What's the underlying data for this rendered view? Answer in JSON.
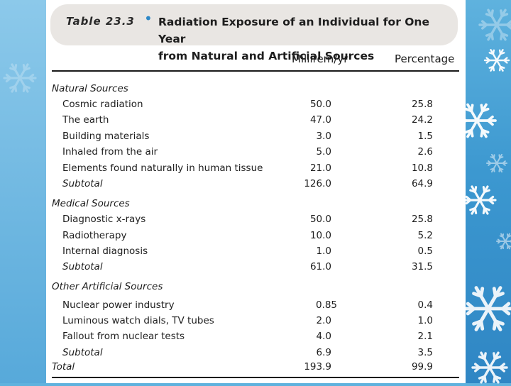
{
  "table": {
    "label": "Table 23.3",
    "title_line1": "Radiation Exposure of an Individual for One Year",
    "title_line2": "from Natural and Artificial Sources",
    "columns": {
      "millirem": "Millirem/yr",
      "percentage": "Percentage"
    },
    "rows": [
      {
        "kind": "section",
        "label": "Natural Sources",
        "millirem": "",
        "percentage": ""
      },
      {
        "kind": "item",
        "label": "Cosmic radiation",
        "millirem": "50.0",
        "percentage": "25.8"
      },
      {
        "kind": "item",
        "label": "The earth",
        "millirem": "47.0",
        "percentage": "24.2"
      },
      {
        "kind": "item",
        "label": "Building materials",
        "millirem": "3.0",
        "percentage": "1.5"
      },
      {
        "kind": "item",
        "label": "Inhaled from the air",
        "millirem": "5.0",
        "percentage": "2.6"
      },
      {
        "kind": "item",
        "label": "Elements found naturally in human tissue",
        "millirem": "21.0",
        "percentage": "10.8"
      },
      {
        "kind": "subtotal",
        "label": "Subtotal",
        "millirem": "126.0",
        "percentage": "64.9"
      },
      {
        "kind": "section",
        "label": "Medical Sources",
        "millirem": "",
        "percentage": ""
      },
      {
        "kind": "item",
        "label": "Diagnostic x-rays",
        "millirem": "50.0",
        "percentage": "25.8"
      },
      {
        "kind": "item",
        "label": "Radiotherapy",
        "millirem": "10.0",
        "percentage": "5.2"
      },
      {
        "kind": "item",
        "label": "Internal diagnosis",
        "millirem": "1.0",
        "percentage": "0.5"
      },
      {
        "kind": "subtotal",
        "label": "Subtotal",
        "millirem": "61.0",
        "percentage": "31.5"
      },
      {
        "kind": "section",
        "label": "Other Artificial Sources",
        "millirem": "",
        "percentage": ""
      },
      {
        "kind": "item",
        "label": "Nuclear power industry",
        "millirem": "0.85",
        "percentage": "0.4"
      },
      {
        "kind": "item",
        "label": "Luminous watch dials, TV tubes",
        "millirem": "2.0",
        "percentage": "1.0"
      },
      {
        "kind": "item",
        "label": "Fallout from nuclear tests",
        "millirem": "4.0",
        "percentage": "2.1"
      },
      {
        "kind": "subtotal",
        "label": "Subtotal",
        "millirem": "6.9",
        "percentage": "3.5"
      },
      {
        "kind": "total",
        "label": "Total",
        "millirem": "193.9",
        "percentage": "99.9"
      }
    ]
  },
  "theme": {
    "background": "#3c98d0",
    "title_box": "#e9e6e3",
    "bullet": "#2d88c7",
    "decoration": "snowflake-icon"
  }
}
